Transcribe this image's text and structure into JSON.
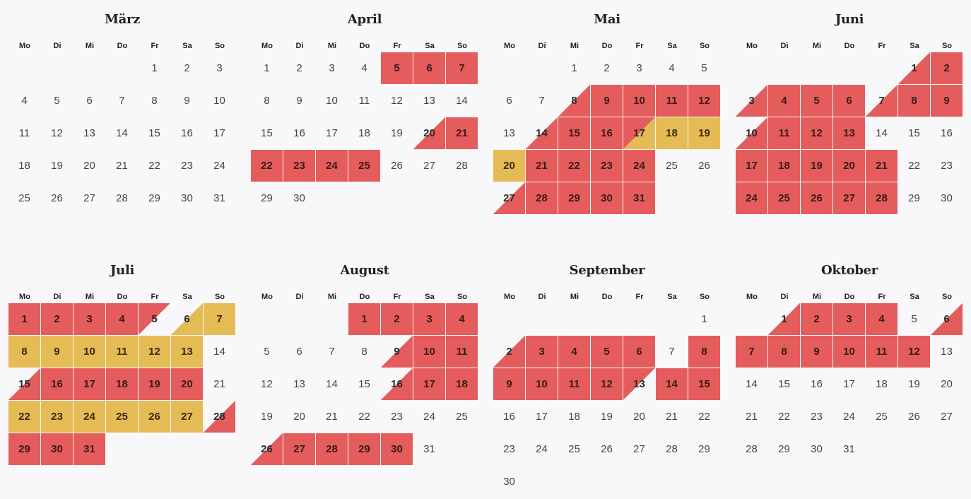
{
  "weekdays": [
    "Mo",
    "Di",
    "Mi",
    "Do",
    "Fr",
    "Sa",
    "So"
  ],
  "colors": {
    "holiday": "#e55c5c",
    "secondary": "#e5bb55",
    "background": "#f8f8fb"
  },
  "months": [
    {
      "name": "März",
      "start": 5,
      "days": 31,
      "marks": {}
    },
    {
      "name": "April",
      "start": 1,
      "days": 30,
      "marks": {
        "5": "full-red",
        "6": "full-red",
        "7": "full-red",
        "20": "tri-red",
        "21": "full-red",
        "22": "full-red",
        "23": "full-red",
        "24": "full-red",
        "25": "full-red"
      }
    },
    {
      "name": "Mai",
      "start": 3,
      "days": 31,
      "marks": {
        "8": "tri-red",
        "9": "full-red",
        "10": "full-red",
        "11": "full-red",
        "12": "full-red",
        "14": "tri-red",
        "15": "full-red",
        "16": "full-red",
        "17": "red-to-yellow",
        "18": "full-yellow",
        "19": "full-yellow",
        "20": "full-yellow",
        "21": "full-red",
        "22": "full-red",
        "23": "full-red",
        "24": "full-red",
        "27": "tri-red",
        "28": "full-red",
        "29": "full-red",
        "30": "full-red",
        "31": "full-red"
      }
    },
    {
      "name": "Juni",
      "start": 6,
      "days": 30,
      "marks": {
        "1": "tri-red",
        "2": "full-red",
        "3": "tri-red",
        "4": "full-red",
        "5": "full-red",
        "6": "full-red",
        "7": "tri-red",
        "8": "full-red",
        "9": "full-red",
        "10": "tri-red",
        "11": "full-red",
        "12": "full-red",
        "13": "full-red",
        "17": "full-red",
        "18": "full-red",
        "19": "full-red",
        "20": "full-red",
        "21": "full-red",
        "24": "full-red",
        "25": "full-red",
        "26": "full-red",
        "27": "full-red",
        "28": "full-red"
      }
    },
    {
      "name": "Juli",
      "start": 1,
      "days": 31,
      "marks": {
        "1": "full-red",
        "2": "full-red",
        "3": "full-red",
        "4": "full-red",
        "5": "red-to-blank",
        "6": "tri-yellow",
        "7": "full-yellow",
        "8": "full-yellow",
        "9": "full-yellow",
        "10": "full-yellow",
        "11": "full-yellow",
        "12": "full-yellow",
        "13": "full-yellow",
        "15": "tri-red",
        "16": "full-red",
        "17": "full-red",
        "18": "full-red",
        "19": "full-red",
        "20": "full-red",
        "22": "full-yellow",
        "23": "full-yellow",
        "24": "full-yellow",
        "25": "full-yellow",
        "26": "full-yellow",
        "27": "full-yellow",
        "28": "tri-red",
        "29": "full-red",
        "30": "full-red",
        "31": "full-red"
      }
    },
    {
      "name": "August",
      "start": 4,
      "days": 31,
      "marks": {
        "1": "full-red",
        "2": "full-red",
        "3": "full-red",
        "4": "full-red",
        "9": "tri-red",
        "10": "full-red",
        "11": "full-red",
        "16": "tri-red",
        "17": "full-red",
        "18": "full-red",
        "26": "tri-red",
        "27": "full-red",
        "28": "full-red",
        "29": "full-red",
        "30": "full-red"
      }
    },
    {
      "name": "September",
      "start": 7,
      "days": 30,
      "marks": {
        "2": "tri-red",
        "3": "full-red",
        "4": "full-red",
        "5": "full-red",
        "6": "full-red",
        "8": "full-red",
        "9": "full-red",
        "10": "full-red",
        "11": "full-red",
        "12": "full-red",
        "13": "red-to-blank",
        "14": "full-red",
        "15": "full-red"
      }
    },
    {
      "name": "Oktober",
      "start": 2,
      "days": 31,
      "marks": {
        "1": "tri-red",
        "2": "full-red",
        "3": "full-red",
        "4": "full-red",
        "6": "tri-red",
        "7": "full-red",
        "8": "full-red",
        "9": "full-red",
        "10": "full-red",
        "11": "full-red",
        "12": "full-red"
      }
    }
  ]
}
